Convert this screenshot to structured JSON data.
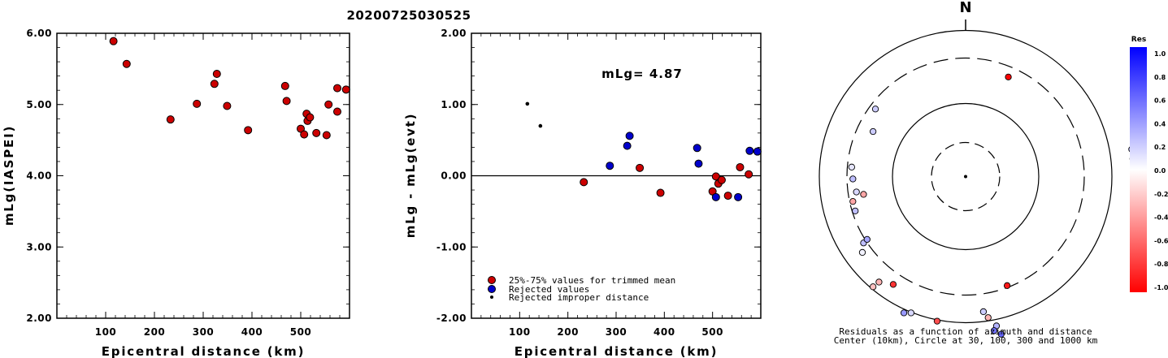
{
  "figure": {
    "title": "20200725030525"
  },
  "chart_data": [
    {
      "type": "scatter",
      "title": "",
      "xlabel": "Epicentral distance (km)",
      "ylabel": "mLg(IASPEI)",
      "xlim": [
        0,
        600
      ],
      "ylim": [
        2.0,
        6.0
      ],
      "xticks": [
        "100",
        "200",
        "300",
        "400",
        "500"
      ],
      "yticks": [
        "2.00",
        "3.00",
        "4.00",
        "5.00",
        "6.00"
      ],
      "series": [
        {
          "color": "#cc0000",
          "points": [
            [
              116,
              5.89
            ],
            [
              143,
              5.57
            ],
            [
              233,
              4.79
            ],
            [
              287,
              5.01
            ],
            [
              323,
              5.29
            ],
            [
              328,
              5.43
            ],
            [
              349,
              4.98
            ],
            [
              392,
              4.64
            ],
            [
              468,
              5.26
            ],
            [
              471,
              5.05
            ],
            [
              500,
              4.66
            ],
            [
              507,
              4.58
            ],
            [
              512,
              4.87
            ],
            [
              514,
              4.77
            ],
            [
              519,
              4.82
            ],
            [
              532,
              4.6
            ],
            [
              553,
              4.57
            ],
            [
              557,
              5.0
            ],
            [
              575,
              5.23
            ],
            [
              575,
              4.9
            ],
            [
              593,
              5.21
            ]
          ]
        }
      ]
    },
    {
      "type": "scatter",
      "title": "",
      "xlabel": "Epicentral distance (km)",
      "ylabel": "mLg - mLg(evt)",
      "xlim": [
        0,
        600
      ],
      "ylim": [
        -2.0,
        2.0
      ],
      "xticks": [
        "100",
        "200",
        "300",
        "400",
        "500"
      ],
      "yticks": [
        "-2.00",
        "-1.00",
        "0.00",
        "1.00",
        "2.00"
      ],
      "annotation": "mLg= 4.87",
      "reference_line": 0.0,
      "legend": {
        "placement": "bottom-left",
        "entries": [
          "25%-75% values for trimmed mean",
          "Rejected values",
          "Rejected improper distance"
        ]
      },
      "series": [
        {
          "color": "#cc0000",
          "points": [
            [
              233,
              -0.09
            ],
            [
              349,
              0.11
            ],
            [
              392,
              -0.24
            ],
            [
              500,
              -0.22
            ],
            [
              507,
              -0.01
            ],
            [
              512,
              -0.11
            ],
            [
              519,
              -0.06
            ],
            [
              532,
              -0.28
            ],
            [
              557,
              0.12
            ],
            [
              575,
              0.02
            ]
          ]
        },
        {
          "color": "#0000cc",
          "points": [
            [
              287,
              0.14
            ],
            [
              323,
              0.42
            ],
            [
              328,
              0.56
            ],
            [
              468,
              0.39
            ],
            [
              471,
              0.17
            ],
            [
              507,
              -0.3
            ],
            [
              553,
              -0.3
            ],
            [
              577,
              0.35
            ],
            [
              593,
              0.34
            ]
          ]
        },
        {
          "color": "#000000",
          "points": [
            [
              116,
              1.01
            ],
            [
              143,
              0.7
            ]
          ]
        }
      ]
    },
    {
      "type": "scatter",
      "title": "N",
      "caption": [
        "Residuals as a function of azimuth and distance",
        "Center (10km), Circle at 30, 100, 300 and 1000 km"
      ],
      "points_rel": [
        [
          -0.76,
          0.57,
          0.2
        ],
        [
          -0.78,
          0.38,
          0.2
        ],
        [
          -0.96,
          0.08,
          0.1
        ],
        [
          -0.95,
          -0.02,
          0.25
        ],
        [
          -0.92,
          -0.13,
          0.15
        ],
        [
          -0.86,
          -0.15,
          -0.35
        ],
        [
          -0.95,
          -0.21,
          -0.35
        ],
        [
          -0.93,
          -0.29,
          0.25
        ],
        [
          -0.86,
          -0.56,
          0.25
        ],
        [
          -0.83,
          -0.53,
          0.35
        ],
        [
          -0.87,
          -0.64,
          0.05
        ],
        [
          -0.73,
          -0.89,
          -0.3
        ],
        [
          -0.78,
          -0.93,
          -0.25
        ],
        [
          -0.61,
          -0.91,
          -0.8
        ],
        [
          -0.52,
          -1.15,
          0.4
        ],
        [
          -0.46,
          -1.15,
          0.15
        ],
        [
          -0.24,
          -1.22,
          -0.7
        ],
        [
          0.15,
          -1.14,
          0.2
        ],
        [
          0.19,
          -1.19,
          -0.3
        ],
        [
          0.26,
          -1.26,
          0.3
        ],
        [
          0.24,
          -1.3,
          0.55
        ],
        [
          0.3,
          -1.33,
          0.6
        ],
        [
          0.36,
          0.84,
          -1.0
        ],
        [
          0.35,
          -0.92,
          -0.9
        ],
        [
          1.4,
          0.23,
          0.25
        ],
        [
          1.41,
          0.15,
          0.1
        ]
      ],
      "colorbar": {
        "title": "Res",
        "tick_labels": [
          "1.0",
          "0.8",
          "0.6",
          "0.4",
          "0.2",
          "0.0",
          "-0.2",
          "-0.4",
          "-0.6",
          "-0.8",
          "-1.0"
        ]
      }
    }
  ]
}
